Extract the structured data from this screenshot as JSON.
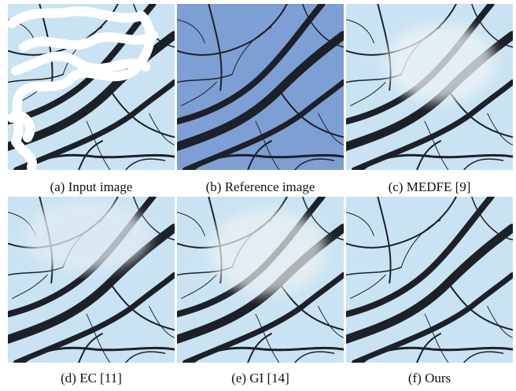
{
  "panels": [
    {
      "caption": "(a) Input image"
    },
    {
      "caption": "(b) Reference image"
    },
    {
      "caption": "(c) MEDFE [9]"
    },
    {
      "caption": "(d) EC [11]"
    },
    {
      "caption": "(e) GI [14]"
    },
    {
      "caption": "(f) Ours"
    }
  ]
}
